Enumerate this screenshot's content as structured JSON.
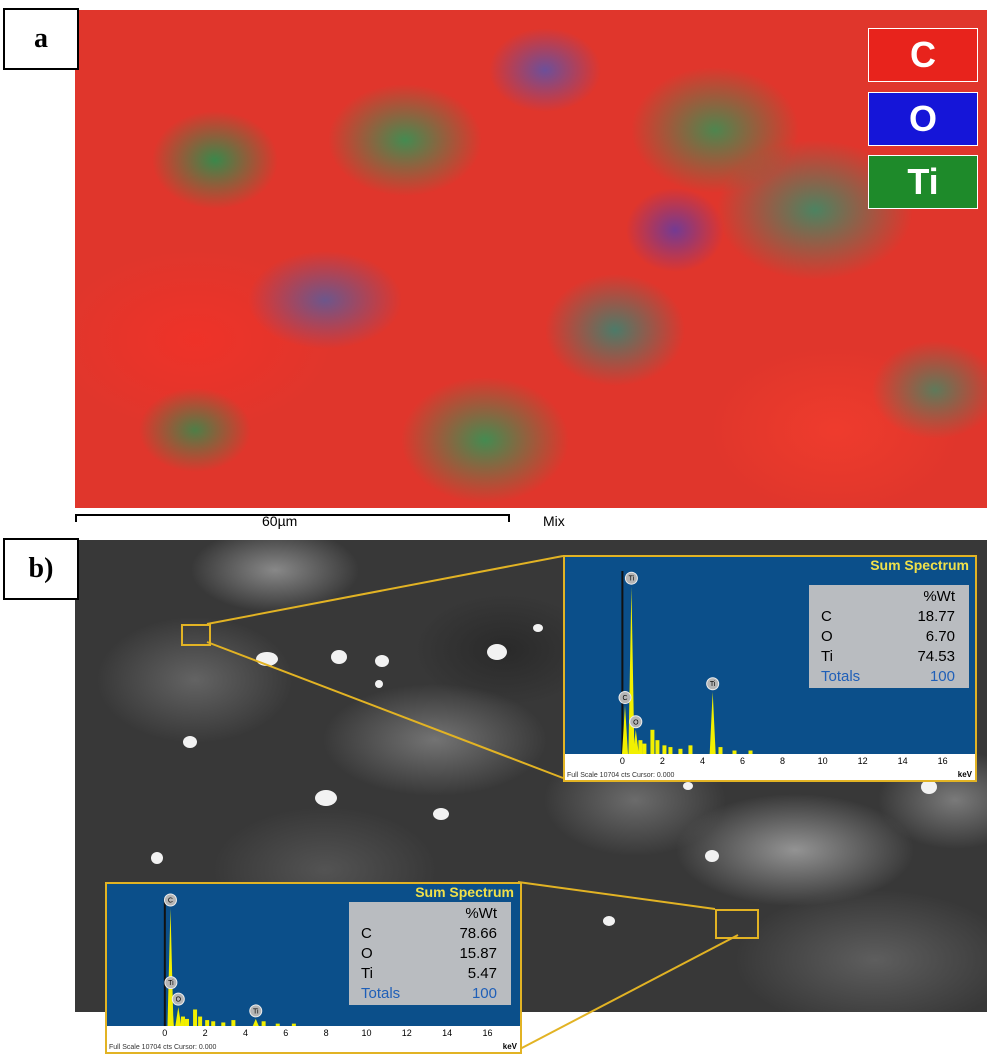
{
  "panel_a": {
    "label": "a",
    "legend": [
      {
        "symbol": "C",
        "color": "#e8231c"
      },
      {
        "symbol": "O",
        "color": "#1515d8"
      },
      {
        "symbol": "Ti",
        "color": "#1e8a2a"
      }
    ],
    "scale_bar": "60µm",
    "layer": "Mix"
  },
  "panel_b": {
    "label": "b)",
    "spectra": [
      {
        "title": "Sum Spectrum",
        "header": "%Wt",
        "rows": [
          {
            "el": "C",
            "val": "18.77"
          },
          {
            "el": "O",
            "val": "6.70"
          },
          {
            "el": "Ti",
            "val": "74.53"
          }
        ],
        "totals_label": "Totals",
        "totals_value": "100",
        "footer": "Full Scale 10704 cts Cursor: 0.000",
        "unit": "keV",
        "ticks": [
          "0",
          "2",
          "4",
          "6",
          "8",
          "10",
          "12",
          "14",
          "16"
        ],
        "peaks": [
          {
            "label": "Ti",
            "x_kev": 0.45,
            "height": 0.97
          },
          {
            "label": "C",
            "x_kev": 0.28,
            "height": 0.28
          },
          {
            "label": "O",
            "x_kev": 0.52,
            "height": 0.14
          },
          {
            "label": "Ti",
            "x_kev": 4.51,
            "height": 0.36
          }
        ]
      },
      {
        "title": "Sum Spectrum",
        "header": "%Wt",
        "rows": [
          {
            "el": "C",
            "val": "78.66"
          },
          {
            "el": "O",
            "val": "15.87"
          },
          {
            "el": "Ti",
            "val": "5.47"
          }
        ],
        "totals_label": "Totals",
        "totals_value": "100",
        "footer": "Full Scale 10704 cts Cursor: 0.000",
        "unit": "keV",
        "ticks": [
          "0",
          "2",
          "4",
          "6",
          "8",
          "10",
          "12",
          "14",
          "16"
        ],
        "peaks": [
          {
            "label": "C",
            "x_kev": 0.28,
            "height": 1.0
          },
          {
            "label": "Ti",
            "x_kev": 0.45,
            "height": 0.3
          },
          {
            "label": "O",
            "x_kev": 0.52,
            "height": 0.16
          },
          {
            "label": "Ti",
            "x_kev": 4.51,
            "height": 0.06
          }
        ]
      }
    ]
  },
  "colors": {
    "frame": "#e2b324",
    "spectrum_bg": "#0b4f8a",
    "peak": "#f2f000"
  }
}
